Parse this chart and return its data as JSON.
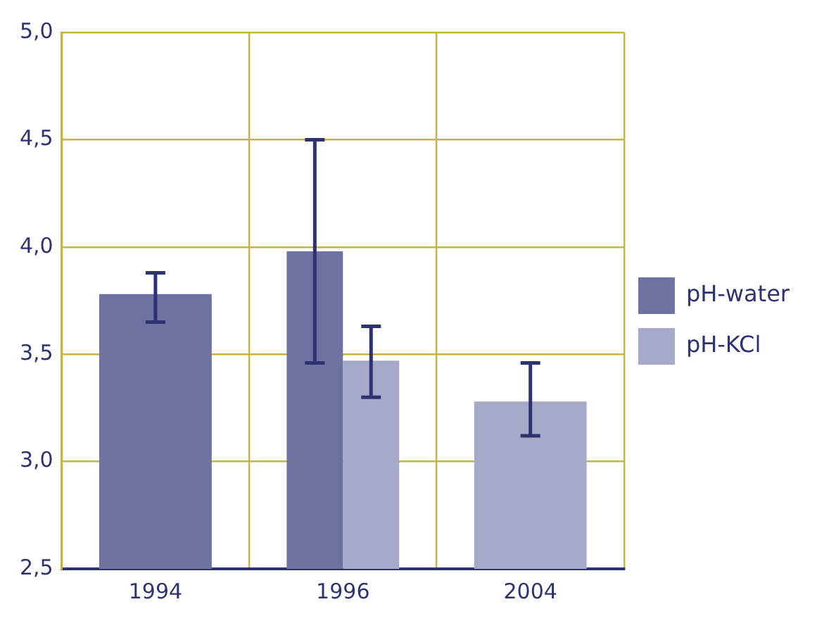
{
  "chart_data": {
    "type": "bar",
    "categories": [
      "1994",
      "1996",
      "2004"
    ],
    "series": [
      {
        "name": "pH-water",
        "color": "#6e72a0",
        "values": [
          3.78,
          3.98,
          null
        ],
        "errors": [
          [
            3.65,
            3.88
          ],
          [
            3.46,
            4.5
          ],
          null
        ]
      },
      {
        "name": "pH-KCl",
        "color": "#a6a9c8",
        "values": [
          null,
          3.47,
          3.28
        ],
        "errors": [
          null,
          [
            3.3,
            3.63
          ],
          [
            3.12,
            3.46
          ]
        ]
      }
    ],
    "ylim": [
      2.5,
      5.0
    ],
    "yticks": [
      {
        "value": 2.5,
        "label": "2,5"
      },
      {
        "value": 3.0,
        "label": "3,0"
      },
      {
        "value": 3.5,
        "label": "3,5"
      },
      {
        "value": 4.0,
        "label": "4,0"
      },
      {
        "value": 4.5,
        "label": "4,5"
      },
      {
        "value": 5.0,
        "label": "5,0"
      }
    ],
    "grid": true,
    "legend": "right"
  }
}
